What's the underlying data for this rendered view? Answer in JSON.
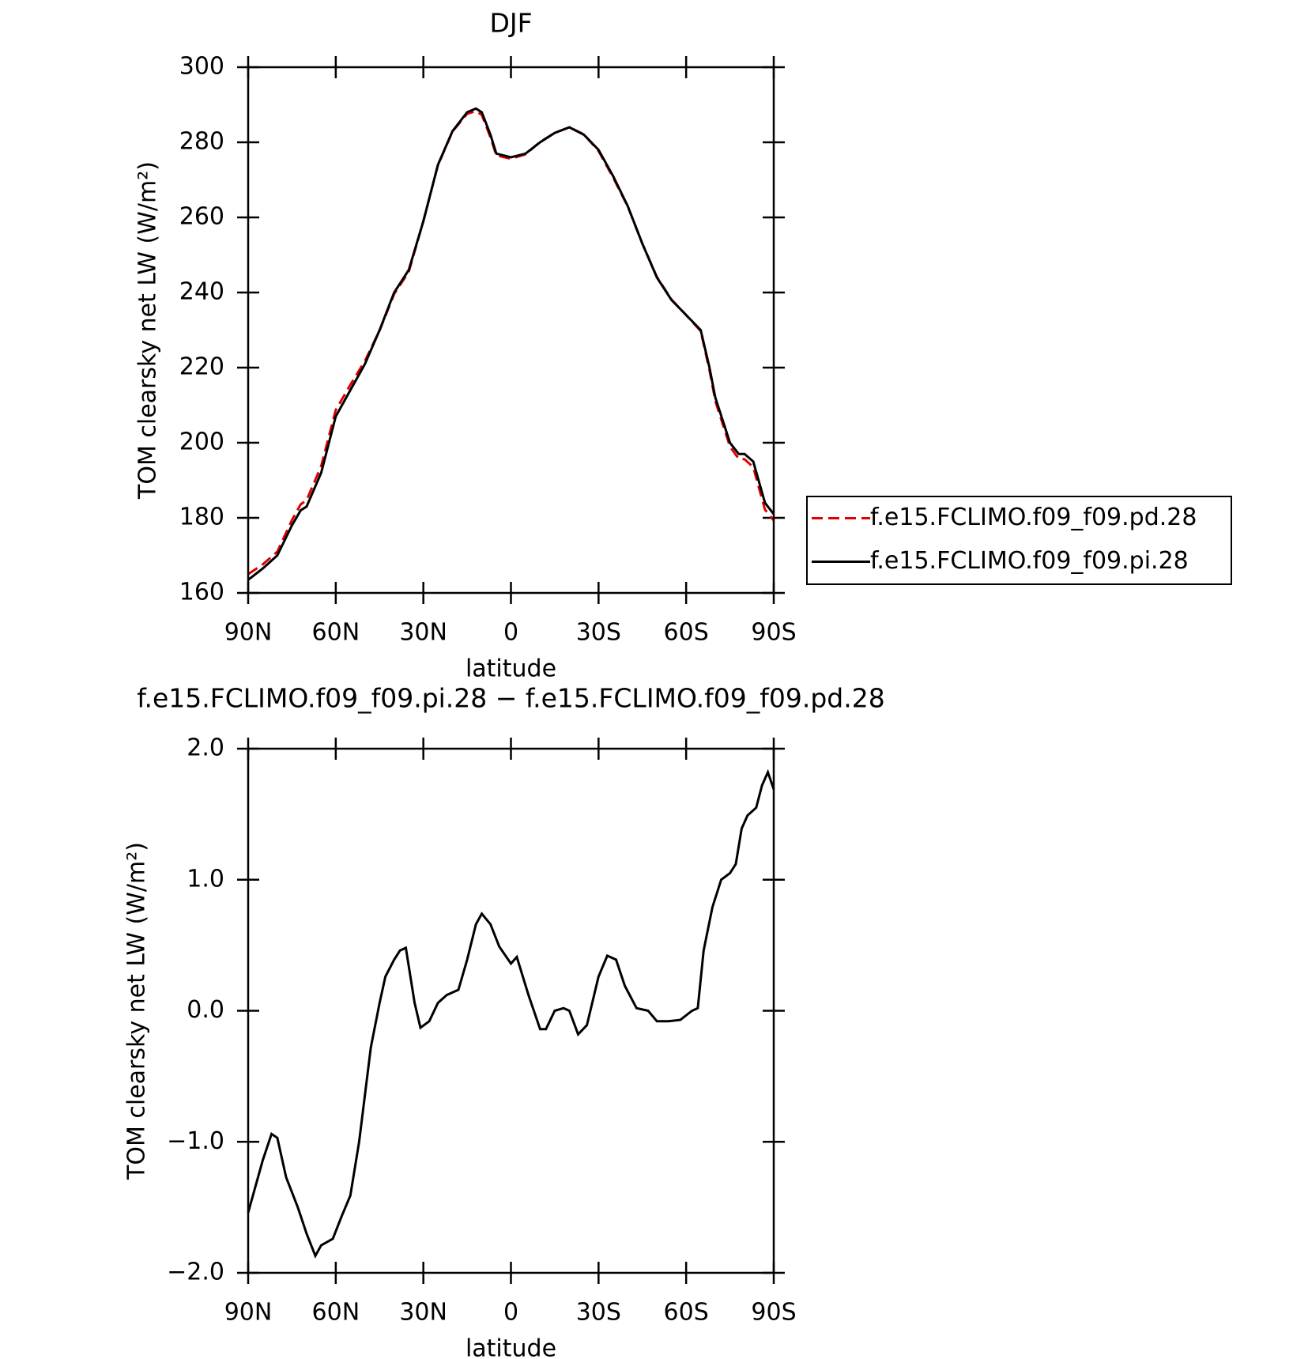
{
  "chart_data": [
    {
      "type": "line",
      "title": "DJF",
      "xlabel": "latitude",
      "ylabel": "TOM clearsky net LW (W/m²)",
      "x": [
        90,
        85,
        80,
        75,
        72,
        70,
        65,
        60,
        55,
        50,
        45,
        40,
        35,
        30,
        25,
        20,
        15,
        12,
        10,
        7,
        5,
        0,
        -5,
        -10,
        -15,
        -20,
        -25,
        -30,
        -35,
        -40,
        -45,
        -50,
        -55,
        -60,
        -65,
        -68,
        -70,
        -75,
        -78,
        -80,
        -83,
        -87,
        -90
      ],
      "series": [
        {
          "name": "f.e15.FCLIMO.f09_f09.pd.28",
          "color": "#e00000",
          "dash": true,
          "values": [
            165.0,
            167.6,
            171.0,
            179.4,
            183.6,
            184.7,
            193.8,
            208.7,
            215.4,
            221.8,
            229.9,
            239.6,
            245.5,
            259.1,
            273.9,
            282.9,
            287.6,
            288.3,
            287.3,
            281.3,
            276.5,
            275.6,
            276.8,
            280.1,
            282.5,
            284.0,
            282.1,
            277.7,
            270.6,
            262.9,
            253.0,
            244.1,
            238.1,
            234.0,
            229.7,
            219.3,
            211.1,
            199.0,
            195.7,
            195.6,
            193.5,
            182.2,
            179.3
          ]
        },
        {
          "name": "f.e15.FCLIMO.f09_f09.pi.28",
          "color": "#000000",
          "dash": false,
          "values": [
            163.5,
            166.5,
            170,
            178,
            182,
            183,
            192,
            207,
            214,
            221,
            230,
            240,
            246,
            259,
            274,
            283,
            288,
            289,
            288,
            282,
            277,
            276,
            277,
            280,
            282.5,
            284,
            282,
            278,
            271,
            263,
            253,
            244,
            238,
            234,
            230,
            220,
            212,
            200,
            197,
            197,
            195,
            184,
            181
          ]
        }
      ],
      "xlim": [
        90,
        -90
      ],
      "xticks": [
        {
          "value": 90,
          "label": "90N"
        },
        {
          "value": 60,
          "label": "60N"
        },
        {
          "value": 30,
          "label": "30N"
        },
        0,
        {
          "value": -30,
          "label": "30S"
        },
        {
          "value": -60,
          "label": "60S"
        },
        {
          "value": -90,
          "label": "90S"
        }
      ],
      "ylim": [
        160,
        300
      ],
      "yticks": [
        160,
        180,
        200,
        220,
        240,
        260,
        280,
        300
      ],
      "legend": "outside-right",
      "grid": false
    },
    {
      "type": "line",
      "title": "f.e15.FCLIMO.f09_f09.pi.28 − f.e15.FCLIMO.f09_f09.pd.28",
      "xlabel": "latitude",
      "ylabel": "TOM clearsky net LW (W/m²)",
      "x": [
        90,
        85,
        82,
        80,
        77,
        73,
        70,
        67,
        65,
        61,
        58,
        55,
        52,
        48,
        45,
        43,
        40,
        38,
        36,
        33,
        31,
        28,
        25,
        22,
        18,
        15,
        12,
        10,
        7,
        4,
        0,
        -2,
        -6,
        -10,
        -12,
        -15,
        -18,
        -20,
        -23,
        -26,
        -30,
        -33,
        -36,
        -39,
        -43,
        -47,
        -50,
        -54,
        -58,
        -62,
        -64,
        -66,
        -69,
        -72,
        -75,
        -77,
        -79,
        -81,
        -84,
        -86,
        -88,
        -90
      ],
      "values": [
        -1.54,
        -1.14,
        -0.94,
        -0.97,
        -1.27,
        -1.5,
        -1.7,
        -1.87,
        -1.79,
        -1.74,
        -1.57,
        -1.41,
        -1.0,
        -0.28,
        0.06,
        0.26,
        0.39,
        0.46,
        0.48,
        0.06,
        -0.13,
        -0.08,
        0.06,
        0.12,
        0.16,
        0.39,
        0.66,
        0.74,
        0.66,
        0.49,
        0.36,
        0.41,
        0.12,
        -0.14,
        -0.14,
        0.0,
        0.02,
        0.0,
        -0.18,
        -0.11,
        0.26,
        0.42,
        0.39,
        0.19,
        0.02,
        0.0,
        -0.08,
        -0.08,
        -0.07,
        0.0,
        0.02,
        0.46,
        0.79,
        1.0,
        1.05,
        1.12,
        1.39,
        1.49,
        1.55,
        1.72,
        1.82,
        1.69
      ],
      "color": "#000000",
      "xlim": [
        90,
        -90
      ],
      "xticks": [
        {
          "value": 90,
          "label": "90N"
        },
        {
          "value": 60,
          "label": "60N"
        },
        {
          "value": 30,
          "label": "30N"
        },
        0,
        {
          "value": -30,
          "label": "30S"
        },
        {
          "value": -60,
          "label": "60S"
        },
        {
          "value": -90,
          "label": "90S"
        }
      ],
      "ylim": [
        -2,
        2
      ],
      "yticks": [
        {
          "value": -2,
          "label": "−2.0"
        },
        {
          "value": -1,
          "label": "−1.0"
        },
        {
          "value": 0,
          "label": "0.0"
        },
        {
          "value": 1,
          "label": "1.0"
        },
        {
          "value": 2,
          "label": "2.0"
        }
      ],
      "grid": false
    }
  ]
}
